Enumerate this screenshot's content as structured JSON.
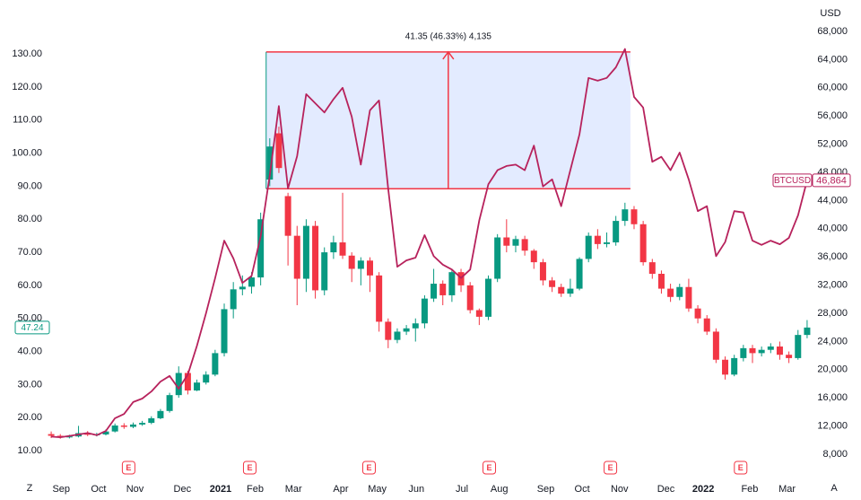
{
  "chart_data": {
    "type": "candlestick",
    "x": [
      0,
      1,
      2,
      3,
      4,
      5,
      6,
      7,
      8,
      9,
      10,
      11,
      12,
      13,
      14,
      15,
      16,
      17,
      18,
      19,
      20,
      21,
      22,
      23,
      24,
      25,
      26,
      27,
      28,
      29,
      30,
      31,
      32,
      33,
      34,
      35,
      36,
      37,
      38,
      39,
      40,
      41,
      42,
      43,
      44,
      45,
      46,
      47,
      48,
      49,
      50,
      51,
      52,
      53,
      54,
      55,
      56,
      57,
      58,
      59,
      60,
      61,
      62,
      63,
      64,
      65,
      66,
      67,
      68,
      69,
      70,
      71,
      72,
      73,
      74,
      75,
      76,
      77,
      78,
      79,
      80,
      81,
      82,
      83
    ],
    "xlim": [
      -0.5,
      83.5
    ],
    "xticks": [
      {
        "value": 1.1,
        "label": "Sep"
      },
      {
        "value": 5.2,
        "label": "Oct"
      },
      {
        "value": 9.2,
        "label": "Nov"
      },
      {
        "value": 14.4,
        "label": "Dec"
      },
      {
        "value": 18.6,
        "label": "2021"
      },
      {
        "value": 22.4,
        "label": "Feb"
      },
      {
        "value": 26.6,
        "label": "Mar"
      },
      {
        "value": 31.8,
        "label": "Apr"
      },
      {
        "value": 35.8,
        "label": "May"
      },
      {
        "value": 40.1,
        "label": "Jun"
      },
      {
        "value": 45.1,
        "label": "Jul"
      },
      {
        "value": 49.2,
        "label": "Aug"
      },
      {
        "value": 54.3,
        "label": "Sep"
      },
      {
        "value": 58.3,
        "label": "Oct"
      },
      {
        "value": 62.4,
        "label": "Nov"
      },
      {
        "value": 67.5,
        "label": "Dec"
      },
      {
        "value": 71.6,
        "label": "2022"
      },
      {
        "value": 76.7,
        "label": "Feb"
      },
      {
        "value": 80.8,
        "label": "Mar"
      }
    ],
    "corner_left": "Z",
    "corner_right": "A",
    "events": [
      {
        "x": 8.5,
        "label": "E"
      },
      {
        "x": 21.8,
        "label": "E"
      },
      {
        "x": 34.9,
        "label": "E"
      },
      {
        "x": 48.1,
        "label": "E"
      },
      {
        "x": 61.4,
        "label": "E"
      },
      {
        "x": 75.7,
        "label": "E"
      }
    ],
    "ylim": [
      2.4,
      140.9
    ],
    "yticks": [
      {
        "value": 10,
        "label": "10.00"
      },
      {
        "value": 20,
        "label": "20.00"
      },
      {
        "value": 30,
        "label": "30.00"
      },
      {
        "value": 40,
        "label": "40.00"
      },
      {
        "value": 50,
        "label": "50.00"
      },
      {
        "value": 60,
        "label": "60.00"
      },
      {
        "value": 70,
        "label": "70.00"
      },
      {
        "value": 80,
        "label": "80.00"
      },
      {
        "value": 90,
        "label": "90.00"
      },
      {
        "value": 100,
        "label": "100.00"
      },
      {
        "value": 110,
        "label": "110.00"
      },
      {
        "value": 120,
        "label": "120.00"
      },
      {
        "value": 130,
        "label": "130.00"
      }
    ],
    "y2label": "USD",
    "y2lim": [
      4940,
      69910
    ],
    "y2ticks": [
      {
        "value": 8000,
        "label": "8,000"
      },
      {
        "value": 12000,
        "label": "12,000"
      },
      {
        "value": 16000,
        "label": "16,000"
      },
      {
        "value": 20000,
        "label": "20,000"
      },
      {
        "value": 24000,
        "label": "24,000"
      },
      {
        "value": 28000,
        "label": "28,000"
      },
      {
        "value": 32000,
        "label": "32,000"
      },
      {
        "value": 36000,
        "label": "36,000"
      },
      {
        "value": 40000,
        "label": "40,000"
      },
      {
        "value": 44000,
        "label": "44,000"
      },
      {
        "value": 48000,
        "label": "48,000"
      },
      {
        "value": 52000,
        "label": "52,000"
      },
      {
        "value": 56000,
        "label": "56,000"
      },
      {
        "value": 60000,
        "label": "60,000"
      },
      {
        "value": 64000,
        "label": "64,000"
      },
      {
        "value": 68000,
        "label": "68,000"
      }
    ],
    "measure": {
      "label": "41.35 (46.33%) 4,135",
      "low": 89.25,
      "high": 130.6,
      "start": 23.6,
      "end": 63.6
    },
    "series": [
      {
        "type": "candlestick",
        "up_color": "#089981",
        "down_color": "#f23645",
        "open": [
          15.0,
          14.5,
          14.0,
          14.3,
          15.3,
          14.8,
          14.9,
          15.8,
          17.6,
          17.2,
          17.9,
          18.4,
          19.8,
          22.0,
          26.8,
          33.5,
          28.2,
          30.6,
          33.0,
          39.5,
          52.8,
          58.8,
          59.6,
          62.4,
          92.0,
          106.0,
          87.0,
          75.0,
          62.0,
          78.0,
          58.5,
          70.0,
          73.0,
          69.0,
          65.0,
          67.5,
          63.0,
          49.0,
          43.5,
          46.0,
          47.0,
          48.5,
          56.0,
          60.5,
          57.0,
          64.0,
          60.0,
          52.5,
          50.5,
          62.0,
          74.5,
          72.0,
          74.0,
          70.5,
          67.0,
          61.5,
          59.5,
          57.5,
          59.0,
          68.0,
          75.0,
          72.5,
          73.0,
          79.5,
          83.0,
          78.5,
          67.0,
          63.5,
          59.0,
          56.5,
          59.5,
          53.0,
          50.0,
          46.0,
          37.5,
          33.0,
          38.0,
          41.0,
          39.5,
          40.5,
          41.5,
          39.0,
          38.0,
          45.0
        ],
        "high": [
          15.8,
          15.0,
          14.8,
          17.5,
          15.9,
          15.4,
          16.4,
          18.2,
          18.3,
          18.5,
          19.0,
          20.4,
          22.6,
          27.5,
          35.5,
          34.2,
          31.5,
          34.0,
          40.5,
          54.5,
          61.0,
          63.0,
          64.0,
          82.0,
          104.5,
          108.0,
          88.0,
          78.0,
          80.0,
          79.5,
          71.5,
          75.0,
          88.0,
          70.0,
          68.5,
          68.5,
          64.0,
          50.0,
          47.0,
          48.0,
          50.0,
          57.0,
          65.0,
          61.5,
          65.0,
          65.0,
          61.0,
          53.0,
          63.0,
          75.5,
          80.0,
          75.0,
          75.0,
          71.0,
          68.0,
          62.5,
          60.5,
          62.0,
          68.5,
          76.0,
          77.0,
          76.0,
          81.0,
          85.0,
          84.0,
          79.5,
          68.0,
          64.5,
          60.5,
          60.5,
          62.0,
          54.0,
          51.0,
          47.0,
          38.5,
          39.0,
          42.0,
          42.0,
          41.5,
          42.5,
          43.0,
          40.0,
          46.5,
          49.5
        ],
        "low": [
          13.8,
          13.6,
          13.7,
          14.0,
          14.4,
          14.3,
          14.6,
          15.5,
          16.6,
          16.8,
          17.5,
          18.0,
          19.5,
          21.5,
          26.0,
          27.0,
          28.0,
          30.0,
          32.5,
          38.5,
          50.0,
          57.0,
          57.5,
          60.0,
          90.0,
          94.0,
          66.0,
          54.0,
          58.0,
          56.0,
          57.0,
          68.0,
          68.0,
          61.0,
          60.0,
          58.0,
          46.0,
          41.0,
          42.5,
          45.0,
          43.0,
          47.0,
          55.0,
          54.0,
          55.0,
          58.0,
          51.5,
          48.0,
          49.5,
          61.0,
          70.0,
          70.0,
          69.0,
          65.0,
          60.0,
          58.0,
          56.5,
          56.5,
          58.5,
          67.0,
          71.0,
          71.5,
          72.0,
          78.0,
          77.0,
          66.0,
          62.0,
          57.5,
          55.0,
          55.5,
          52.0,
          48.5,
          45.0,
          36.5,
          31.5,
          32.5,
          37.0,
          36.5,
          38.5,
          39.5,
          37.5,
          36.5,
          37.5,
          44.0
        ],
        "close": [
          14.5,
          14.0,
          14.3,
          15.3,
          14.8,
          14.9,
          15.8,
          17.6,
          17.2,
          17.9,
          18.4,
          19.8,
          22.0,
          26.8,
          33.5,
          28.2,
          30.6,
          33.0,
          39.5,
          52.8,
          58.8,
          59.6,
          62.4,
          80.0,
          102.0,
          95.5,
          75.0,
          62.0,
          78.0,
          58.5,
          70.0,
          73.0,
          69.0,
          65.0,
          67.5,
          63.0,
          49.0,
          43.5,
          46.0,
          47.0,
          48.5,
          56.0,
          60.5,
          57.0,
          64.0,
          60.0,
          52.5,
          50.5,
          62.0,
          74.5,
          72.0,
          74.0,
          70.5,
          67.0,
          61.5,
          59.5,
          57.5,
          59.0,
          68.0,
          75.0,
          72.5,
          73.0,
          79.5,
          83.0,
          78.5,
          67.0,
          63.5,
          59.0,
          56.5,
          59.5,
          53.0,
          50.0,
          46.0,
          37.5,
          33.0,
          38.0,
          41.0,
          39.5,
          40.5,
          41.5,
          39.0,
          38.0,
          45.0,
          47.24
        ]
      },
      {
        "name": "BTCUSD",
        "type": "line",
        "axis": "y2",
        "color": "#b7225c",
        "last_value_label": "46,864",
        "values": [
          10500,
          10400,
          10600,
          10800,
          11000,
          10700,
          11300,
          13100,
          13700,
          15400,
          15900,
          16900,
          18300,
          19100,
          17300,
          19300,
          23400,
          28000,
          33000,
          38300,
          35800,
          32300,
          33300,
          38900,
          47600,
          57400,
          45700,
          50300,
          59100,
          57800,
          56500,
          58400,
          60000,
          55900,
          49100,
          56800,
          58200,
          45700,
          34600,
          35500,
          35900,
          39100,
          36100,
          34900,
          34200,
          33000,
          34200,
          41200,
          46300,
          48300,
          48900,
          49100,
          48300,
          51800,
          46000,
          47000,
          43200,
          48300,
          53400,
          61400,
          61000,
          61400,
          62900,
          65500,
          58700,
          57200,
          49500,
          50200,
          48300,
          50800,
          47000,
          42500,
          43200,
          36100,
          38100,
          42500,
          42300,
          38300,
          37700,
          38300,
          37800,
          38700,
          41900,
          46864
        ]
      }
    ]
  }
}
